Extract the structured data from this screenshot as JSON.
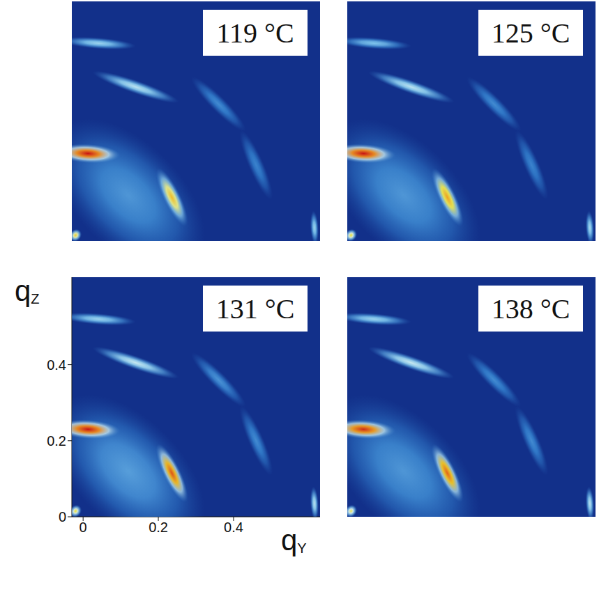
{
  "chart_data": [
    {
      "type": "scatter",
      "title": "119 °C",
      "xlim": [
        -0.03,
        0.63
      ],
      "ylim": [
        0,
        0.63
      ],
      "tick_labels": false,
      "x": [
        0.12,
        0.013,
        0.236,
        0.14,
        0.04,
        0.615,
        -0.02,
        0.36,
        0.46
      ],
      "values": [
        0.12,
        0.23,
        0.115,
        0.405,
        0.52,
        0.035,
        0.015,
        0.36,
        0.2
      ],
      "intensity": [
        0.33,
        1.0,
        0.78,
        0.55,
        0.5,
        0.5,
        0.75,
        0.3,
        0.28
      ],
      "tangential_width": [
        0.5,
        0.17,
        0.17,
        0.24,
        0.2,
        0.09,
        0.035,
        0.2,
        0.2
      ],
      "radial_width": [
        0.28,
        0.05,
        0.045,
        0.035,
        0.03,
        0.022,
        0.03,
        0.04,
        0.04
      ]
    },
    {
      "type": "scatter",
      "title": "125 °C",
      "xlim": [
        -0.03,
        0.63
      ],
      "ylim": [
        0,
        0.63
      ],
      "tick_labels": false,
      "x": [
        0.12,
        0.013,
        0.236,
        0.14,
        0.04,
        0.615,
        -0.02,
        0.36,
        0.46
      ],
      "values": [
        0.12,
        0.23,
        0.115,
        0.405,
        0.52,
        0.035,
        0.015,
        0.36,
        0.2
      ],
      "intensity": [
        0.33,
        1.0,
        0.82,
        0.55,
        0.45,
        0.52,
        0.72,
        0.3,
        0.28
      ],
      "tangential_width": [
        0.5,
        0.17,
        0.17,
        0.24,
        0.2,
        0.09,
        0.035,
        0.2,
        0.2
      ],
      "radial_width": [
        0.28,
        0.05,
        0.045,
        0.035,
        0.03,
        0.022,
        0.03,
        0.04,
        0.04
      ]
    },
    {
      "type": "scatter",
      "title": "131 °C",
      "xlim": [
        -0.03,
        0.63
      ],
      "ylim": [
        0,
        0.63
      ],
      "xticks": [
        0,
        0.2,
        0.4
      ],
      "yticks": [
        0,
        0.2,
        0.4
      ],
      "x_label": "qY",
      "y_label": "qZ",
      "x": [
        0.12,
        0.013,
        0.236,
        0.14,
        0.04,
        0.615,
        -0.02,
        0.36,
        0.46
      ],
      "values": [
        0.12,
        0.23,
        0.115,
        0.405,
        0.52,
        0.035,
        0.015,
        0.36,
        0.2
      ],
      "intensity": [
        0.35,
        1.0,
        0.92,
        0.57,
        0.5,
        0.55,
        0.72,
        0.32,
        0.3
      ],
      "tangential_width": [
        0.5,
        0.17,
        0.17,
        0.24,
        0.2,
        0.09,
        0.035,
        0.2,
        0.2
      ],
      "radial_width": [
        0.28,
        0.05,
        0.045,
        0.035,
        0.03,
        0.022,
        0.03,
        0.04,
        0.04
      ]
    },
    {
      "type": "scatter",
      "title": "138 °C",
      "xlim": [
        -0.03,
        0.63
      ],
      "ylim": [
        0,
        0.63
      ],
      "tick_labels": false,
      "x": [
        0.12,
        0.013,
        0.236,
        0.14,
        0.04,
        0.615,
        -0.02,
        0.36,
        0.46
      ],
      "values": [
        0.12,
        0.23,
        0.115,
        0.405,
        0.52,
        0.035,
        0.015,
        0.36,
        0.2
      ],
      "intensity": [
        0.33,
        0.97,
        0.9,
        0.57,
        0.5,
        0.55,
        0.7,
        0.3,
        0.3
      ],
      "tangential_width": [
        0.5,
        0.17,
        0.17,
        0.24,
        0.2,
        0.09,
        0.035,
        0.2,
        0.2
      ],
      "radial_width": [
        0.28,
        0.05,
        0.045,
        0.035,
        0.03,
        0.022,
        0.03,
        0.04,
        0.04
      ]
    }
  ]
}
